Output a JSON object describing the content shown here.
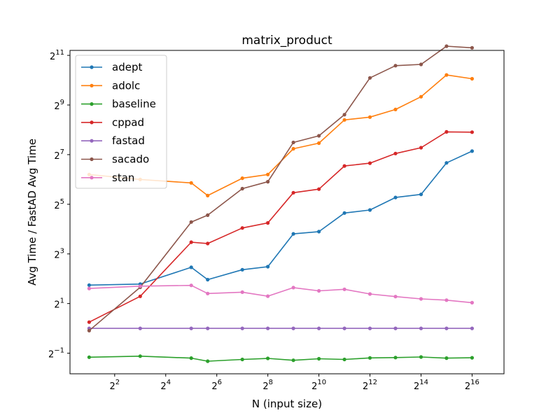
{
  "chart_data": {
    "type": "line",
    "title": "matrix_product",
    "xlabel": "N (input size)",
    "ylabel": "Avg Time / FastAD Avg Time",
    "xscale": "log2",
    "yscale": "log2",
    "xlim_log2": [
      0.25,
      17.25
    ],
    "ylim_log2": [
      -1.83,
      11.2
    ],
    "xticks": [
      {
        "base": "2",
        "exp": "2",
        "log2": 2
      },
      {
        "base": "2",
        "exp": "4",
        "log2": 4
      },
      {
        "base": "2",
        "exp": "6",
        "log2": 6
      },
      {
        "base": "2",
        "exp": "8",
        "log2": 8
      },
      {
        "base": "2",
        "exp": "10",
        "log2": 10
      },
      {
        "base": "2",
        "exp": "12",
        "log2": 12
      },
      {
        "base": "2",
        "exp": "14",
        "log2": 14
      },
      {
        "base": "2",
        "exp": "16",
        "log2": 16
      }
    ],
    "yticks": [
      {
        "base": "2",
        "exp": "−1",
        "log2": -1
      },
      {
        "base": "2",
        "exp": "1",
        "log2": 1
      },
      {
        "base": "2",
        "exp": "3",
        "log2": 3
      },
      {
        "base": "2",
        "exp": "5",
        "log2": 5
      },
      {
        "base": "2",
        "exp": "7",
        "log2": 7
      },
      {
        "base": "2",
        "exp": "9",
        "log2": 9
      },
      {
        "base": "2",
        "exp": "11",
        "log2": 11
      }
    ],
    "x": [
      2,
      8,
      32,
      50,
      128,
      256,
      512,
      1024,
      2048,
      4096,
      8192,
      16384,
      32768,
      65536
    ],
    "grid": false,
    "legend_position": "top-left",
    "series": [
      {
        "name": "adept",
        "color": "#1f77b4",
        "values": [
          3.35,
          3.45,
          5.5,
          3.9,
          5.15,
          5.6,
          14.0,
          14.9,
          25.1,
          27.3,
          38.7,
          42.2,
          101.6,
          141.2
        ]
      },
      {
        "name": "adolc",
        "color": "#ff7f0e",
        "values": [
          73.5,
          64.0,
          58.1,
          40.8,
          66.3,
          73.5,
          151.0,
          176.3,
          337.8,
          365.4,
          452.0,
          645.3,
          1184.5,
          1065.0
        ]
      },
      {
        "name": "baseline",
        "color": "#2ca02c",
        "values": [
          0.447,
          0.46,
          0.436,
          0.4,
          0.42,
          0.432,
          0.41,
          0.428,
          0.42,
          0.438,
          0.443,
          0.45,
          0.436,
          0.44
        ]
      },
      {
        "name": "cppad",
        "color": "#d62728",
        "values": [
          1.19,
          2.45,
          11.1,
          10.7,
          16.5,
          19.0,
          44.2,
          48.8,
          93.2,
          100.8,
          132.1,
          155.5,
          241.9,
          239.7
        ]
      },
      {
        "name": "fastad",
        "color": "#9467bd",
        "values": [
          1,
          1,
          1,
          1,
          1,
          1,
          1,
          1,
          1,
          1,
          1,
          1,
          1,
          1
        ]
      },
      {
        "name": "sacado",
        "color": "#8c564b",
        "values": [
          0.94,
          3.15,
          19.5,
          23.6,
          49.5,
          60.1,
          179.8,
          216.8,
          391.0,
          1092.0,
          1535.0,
          1592.0,
          2644.0,
          2530.0
        ]
      },
      {
        "name": "stan",
        "color": "#e377c2",
        "values": [
          3.05,
          3.25,
          3.32,
          2.65,
          2.75,
          2.46,
          3.12,
          2.85,
          2.98,
          2.61,
          2.43,
          2.28,
          2.2,
          2.05
        ]
      }
    ]
  }
}
